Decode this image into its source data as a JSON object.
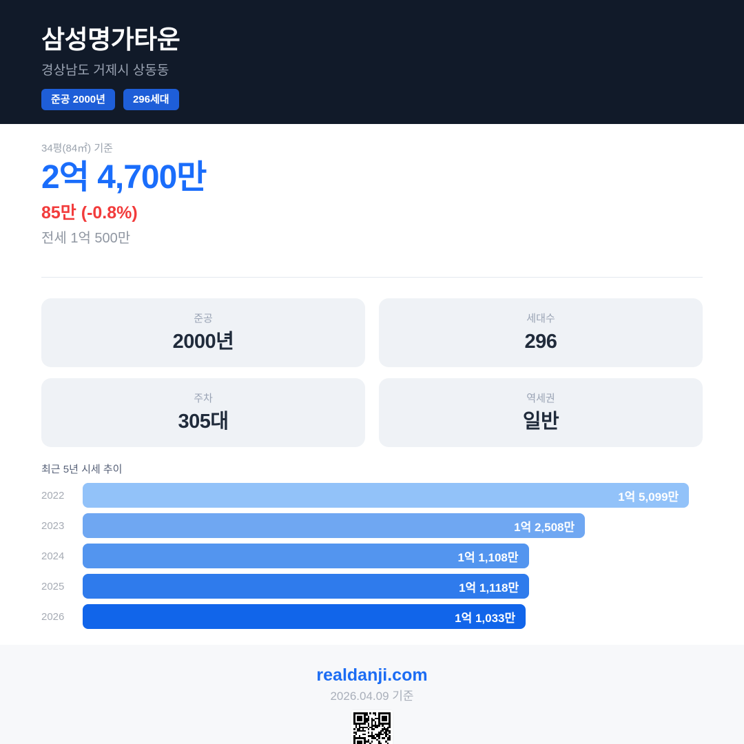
{
  "header": {
    "title": "삼성명가타운",
    "subtitle": "경상남도 거제시 상동동",
    "badges": [
      {
        "label": "준공 2000년"
      },
      {
        "label": "296세대"
      }
    ]
  },
  "price": {
    "basis": "34평(84㎡) 기준",
    "current": "2억 4,700만",
    "change": "85만 (-0.8%)",
    "jeonse": "전세 1억 500만"
  },
  "stats": [
    {
      "label": "준공",
      "value": "2000년"
    },
    {
      "label": "세대수",
      "value": "296"
    },
    {
      "label": "주차",
      "value": "305대"
    },
    {
      "label": "역세권",
      "value": "일반"
    }
  ],
  "chart_data": {
    "type": "bar",
    "orientation": "horizontal",
    "title": "최근 5년 시세 추이",
    "categories": [
      "2022",
      "2023",
      "2024",
      "2025",
      "2026"
    ],
    "values": [
      15099,
      12508,
      11108,
      11118,
      11033
    ],
    "labels": [
      "1억 5,099만",
      "1억 2,508만",
      "1억 1,108만",
      "1억 1,118만",
      "1억 1,033만"
    ],
    "unit": "만원",
    "bar_colors": [
      "#92c2f9",
      "#6fa7f2",
      "#5395ef",
      "#2f7bec",
      "#1165ea"
    ],
    "max_bar_fraction": 0.978,
    "grid": false,
    "legend": false
  },
  "footer": {
    "site": "realdanji.com",
    "date": "2026.04.09 기준",
    "qr": "qr-code"
  },
  "colors": {
    "header_bg": "#111a29",
    "badge_bg": "#1e5ed8",
    "price_blue": "#1a6dfb",
    "change_red": "#f23b3b",
    "card_bg": "#eff2f6",
    "footer_bg": "#f7f8fa",
    "footer_link": "#1c6cf3"
  }
}
